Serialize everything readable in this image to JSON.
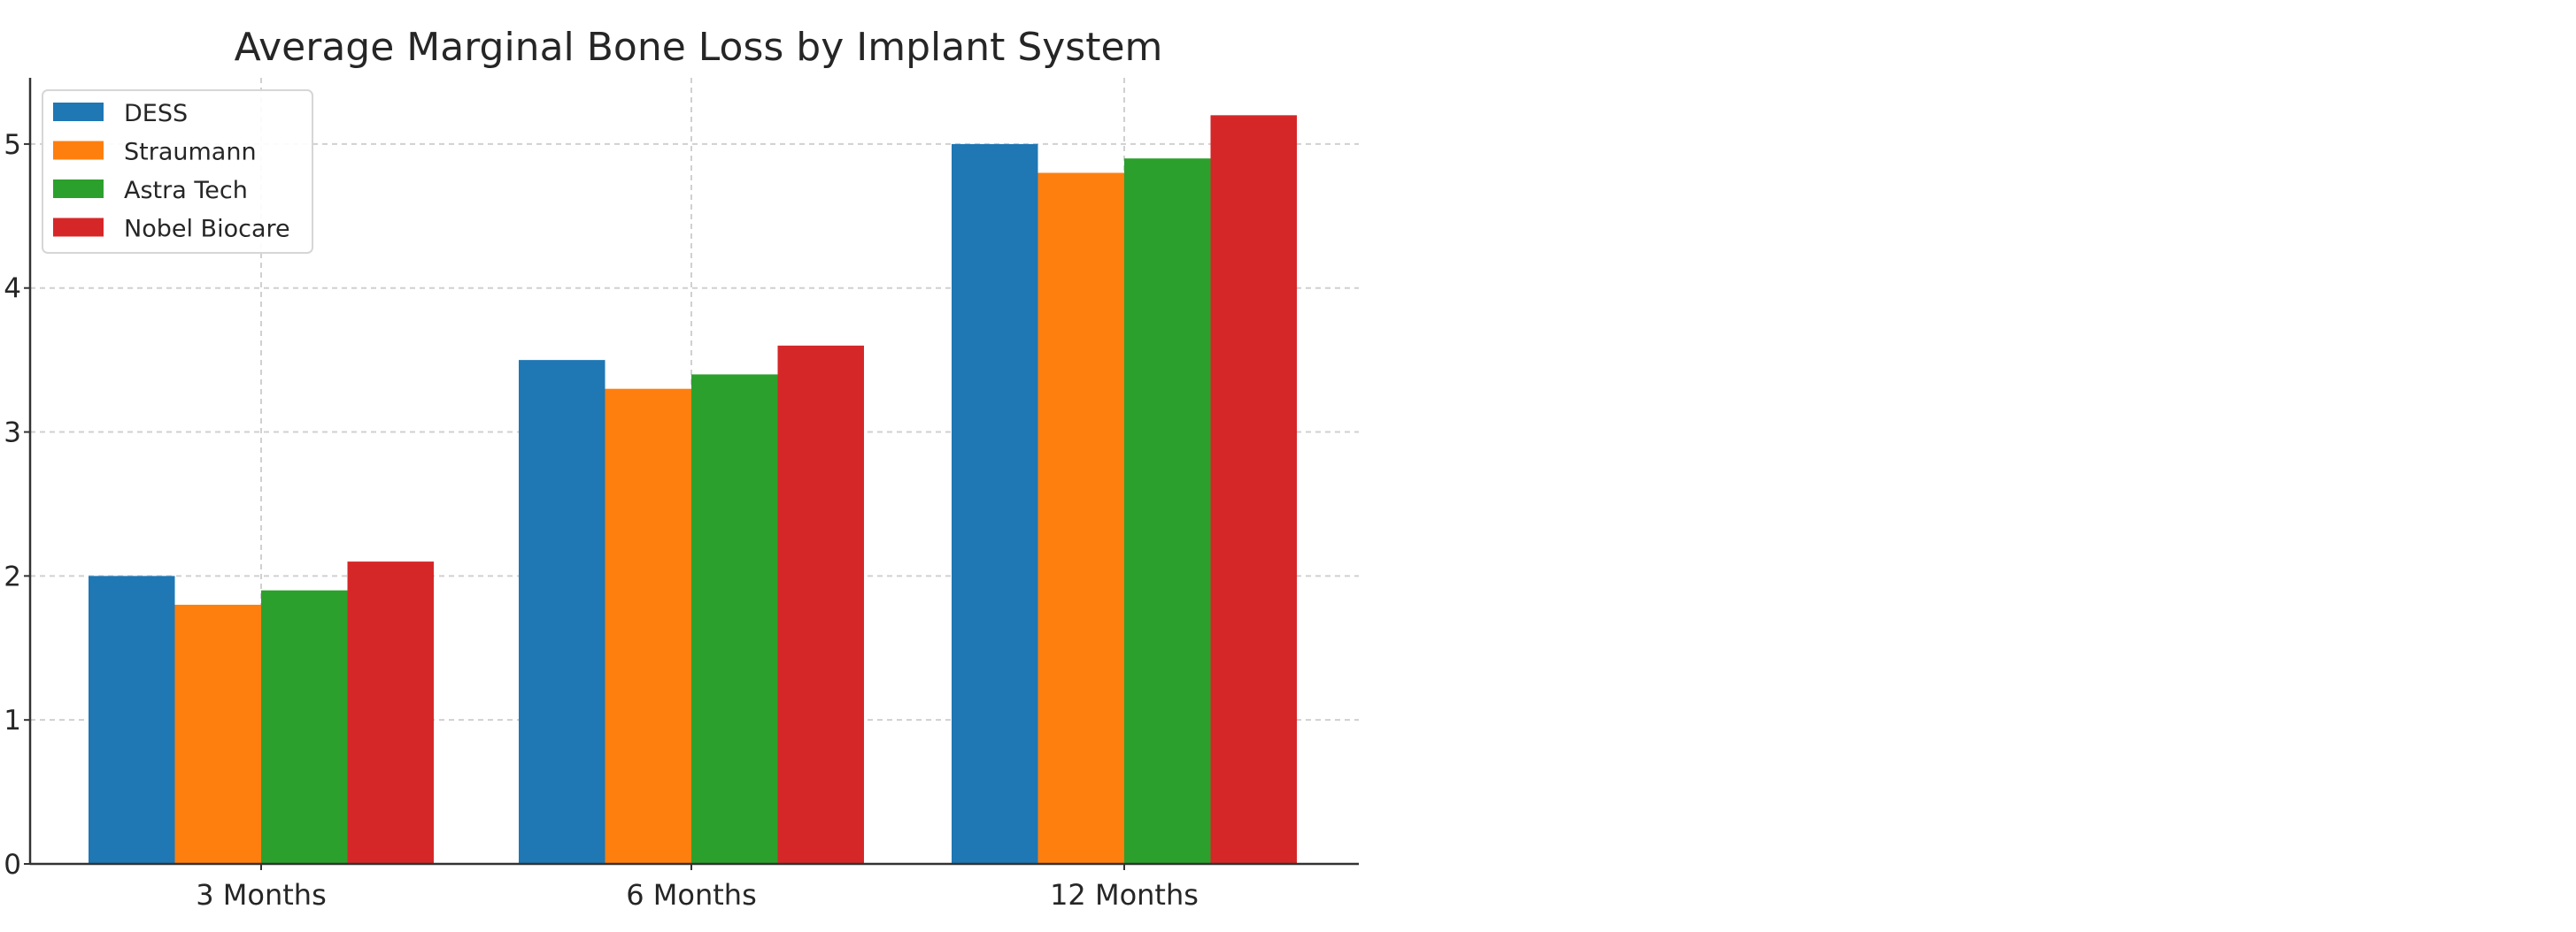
{
  "chart_data": {
    "type": "bar",
    "title": "Average Marginal Bone Loss by Implant System",
    "xlabel": "",
    "ylabel": "",
    "categories": [
      "3 Months",
      "6 Months",
      "12 Months"
    ],
    "series": [
      {
        "name": "DESS",
        "color": "#1f77b4",
        "values": [
          2.0,
          3.5,
          5.0
        ]
      },
      {
        "name": "Straumann",
        "color": "#ff7f0e",
        "values": [
          1.8,
          3.3,
          4.8
        ]
      },
      {
        "name": "Astra Tech",
        "color": "#2ca02c",
        "values": [
          1.9,
          3.4,
          4.9
        ]
      },
      {
        "name": "Nobel Biocare",
        "color": "#d62728",
        "values": [
          2.1,
          3.6,
          5.2
        ]
      }
    ],
    "ylim": [
      0,
      5.46
    ],
    "yticks": [
      0,
      1,
      2,
      3,
      4,
      5
    ],
    "grid": true,
    "legend_position": "top-left"
  }
}
